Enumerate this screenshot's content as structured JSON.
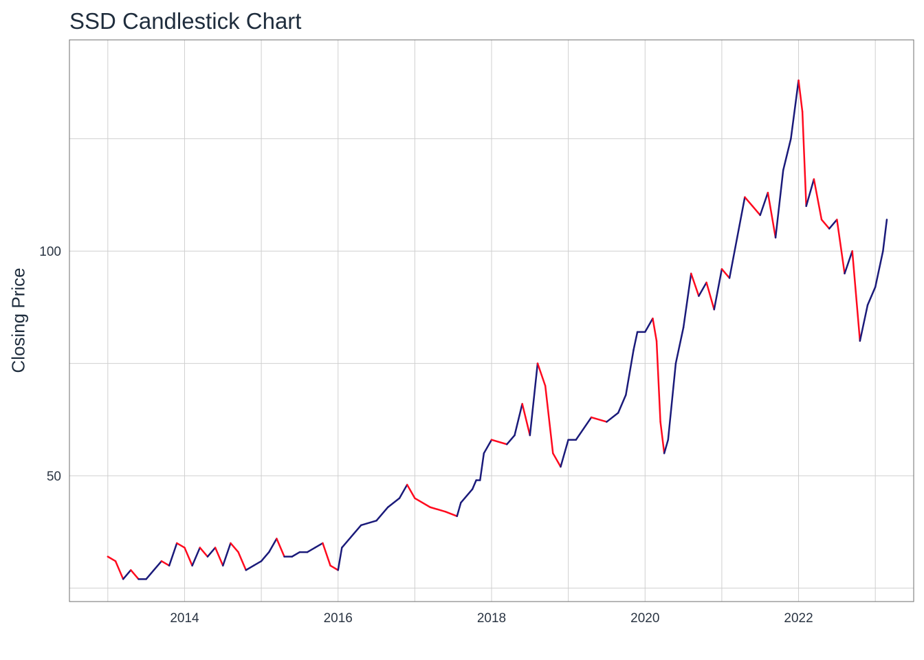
{
  "chart_data": {
    "type": "line",
    "title": "SSD Candlestick Chart",
    "xlabel": "",
    "ylabel": "Closing Price",
    "xlim": [
      2012.5,
      2023.5
    ],
    "ylim": [
      22,
      147
    ],
    "x_ticks": [
      2014,
      2016,
      2018,
      2020,
      2022
    ],
    "x_tick_labels": [
      "2014",
      "2016",
      "2018",
      "2020",
      "2022"
    ],
    "y_ticks": [
      50,
      100
    ],
    "y_tick_labels": [
      "50",
      "100"
    ],
    "grid": true,
    "legend": "none",
    "colors": {
      "up": "#1a1a7a",
      "down": "#ff0a1e",
      "grid": "#cfcfcf",
      "axis": "#6e6e6e"
    },
    "series": [
      {
        "x": [
          2013.0,
          2013.1,
          2013.2,
          2013.3,
          2013.4,
          2013.5,
          2013.6,
          2013.7,
          2013.8,
          2013.9,
          2014.0,
          2014.1,
          2014.2,
          2014.3,
          2014.4,
          2014.5,
          2014.6,
          2014.7,
          2014.8,
          2014.9,
          2015.0,
          2015.1,
          2015.2,
          2015.3,
          2015.4,
          2015.5,
          2015.6,
          2015.7,
          2015.8,
          2015.9,
          2016.0,
          2016.05,
          2016.2,
          2016.3,
          2016.5,
          2016.65,
          2016.8,
          2016.9,
          2017.0,
          2017.2,
          2017.4,
          2017.55,
          2017.6,
          2017.75,
          2017.8,
          2017.85,
          2017.9,
          2018.0,
          2018.2,
          2018.3,
          2018.4,
          2018.5,
          2018.6,
          2018.7,
          2018.8,
          2018.9,
          2019.0,
          2019.1,
          2019.3,
          2019.5,
          2019.65,
          2019.75,
          2019.85,
          2019.9,
          2020.0,
          2020.1,
          2020.15,
          2020.2,
          2020.25,
          2020.3,
          2020.4,
          2020.5,
          2020.6,
          2020.7,
          2020.8,
          2020.9,
          2021.0,
          2021.1,
          2021.2,
          2021.3,
          2021.4,
          2021.5,
          2021.6,
          2021.7,
          2021.8,
          2021.9,
          2022.0,
          2022.05,
          2022.1,
          2022.2,
          2022.3,
          2022.4,
          2022.5,
          2022.6,
          2022.7,
          2022.8,
          2022.9,
          2023.0,
          2023.1,
          2023.15
        ],
        "y": [
          32,
          31,
          27,
          29,
          27,
          27,
          29,
          31,
          30,
          35,
          34,
          30,
          34,
          32,
          34,
          30,
          35,
          33,
          29,
          30,
          31,
          33,
          36,
          32,
          32,
          33,
          33,
          34,
          35,
          30,
          29,
          34,
          37,
          39,
          40,
          43,
          45,
          48,
          45,
          43,
          42,
          41,
          44,
          47,
          49,
          49,
          55,
          58,
          57,
          59,
          66,
          59,
          75,
          70,
          55,
          52,
          58,
          58,
          63,
          62,
          64,
          68,
          78,
          82,
          82,
          85,
          80,
          62,
          55,
          58,
          75,
          83,
          95,
          90,
          93,
          87,
          96,
          94,
          103,
          112,
          110,
          108,
          113,
          103,
          118,
          125,
          138,
          131,
          110,
          116,
          107,
          105,
          107,
          95,
          100,
          80,
          88,
          92,
          100,
          107
        ]
      }
    ]
  }
}
